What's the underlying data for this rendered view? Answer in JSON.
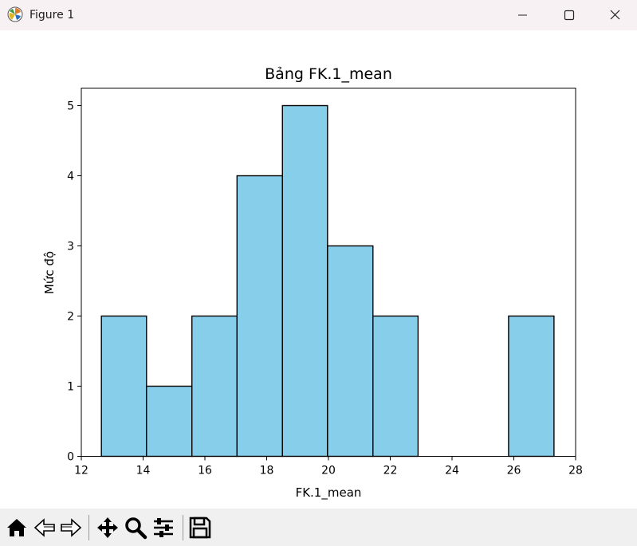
{
  "window": {
    "title": "Figure 1"
  },
  "chart_data": {
    "type": "bar",
    "title": "Bảng FK.1_mean",
    "xlabel": "FK.1_mean",
    "ylabel": "Mức độ",
    "xlim": [
      12,
      28
    ],
    "ylim": [
      0,
      5.25
    ],
    "xticks": [
      12,
      14,
      16,
      18,
      20,
      22,
      24,
      26,
      28
    ],
    "yticks": [
      0,
      1,
      2,
      3,
      4,
      5
    ],
    "bin_edges": [
      12.65,
      14.11,
      15.58,
      17.04,
      18.51,
      19.97,
      21.44,
      22.9,
      24.37,
      25.83,
      27.3
    ],
    "values": [
      2,
      1,
      2,
      4,
      5,
      3,
      2,
      0,
      0,
      2
    ],
    "bar_color": "#87ceeb",
    "edge_color": "#000000",
    "grid": false
  },
  "toolbar": {
    "tools": [
      "home-icon",
      "back-arrow-icon",
      "forward-arrow-icon",
      "pan-icon",
      "zoom-icon",
      "configure-subplots-icon",
      "save-icon"
    ]
  }
}
